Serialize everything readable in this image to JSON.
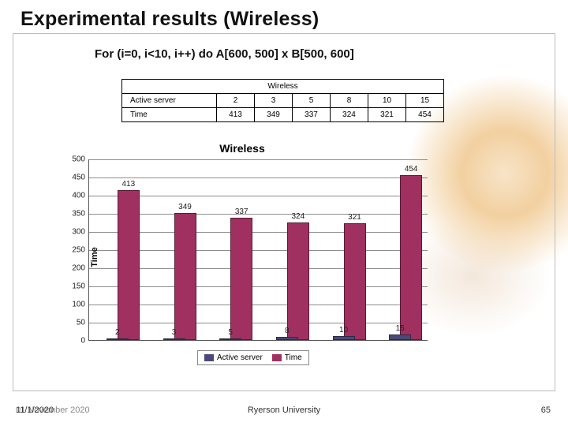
{
  "title": "Experimental results (Wireless)",
  "subtitle": "For (i=0, i<10, i++) do A[600, 500] x B[500, 600]",
  "table": {
    "header": "Wireless",
    "row1_label": "Active server",
    "row2_label": "Time",
    "cols": [
      "2",
      "3",
      "5",
      "8",
      "10",
      "15"
    ],
    "vals": [
      "413",
      "349",
      "337",
      "324",
      "321",
      "454"
    ]
  },
  "chart": {
    "title": "Wireless",
    "ylabel": "Time",
    "ylim_max": 500,
    "ytick_step": 50,
    "categories": [
      "2",
      "3",
      "5",
      "8",
      "10",
      "15"
    ],
    "srv_values": [
      2,
      3,
      5,
      8,
      10,
      15
    ],
    "time_values": [
      413,
      349,
      337,
      324,
      321,
      454
    ],
    "colors": {
      "srv": "#4a497a",
      "time": "#a03060",
      "grid": "#2f2f2f",
      "bg": "#ffffff",
      "text": "#222222"
    },
    "legend": {
      "srv": "Active server",
      "time": "Time"
    }
  },
  "footer": {
    "date1": "11/1/2020",
    "date2": "01 November 2020",
    "center": "Ryerson University",
    "page": "65"
  }
}
